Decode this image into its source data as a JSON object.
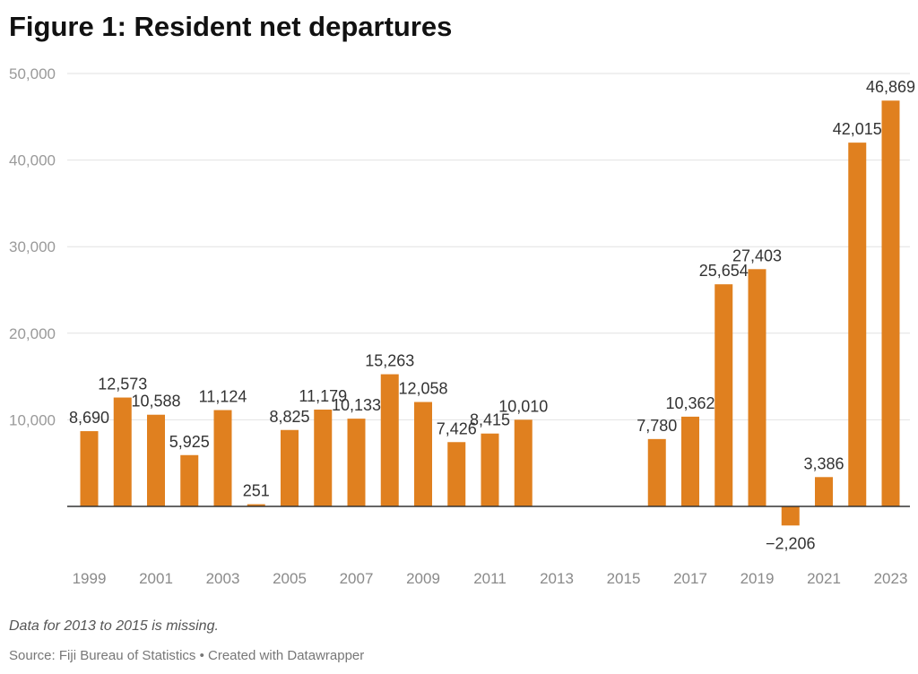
{
  "chart_data": {
    "type": "bar",
    "title": "Figure 1: Resident net departures",
    "categories": [
      "1999",
      "2000",
      "2001",
      "2002",
      "2003",
      "2004",
      "2005",
      "2006",
      "2007",
      "2008",
      "2009",
      "2010",
      "2011",
      "2012",
      "2013",
      "2014",
      "2015",
      "2016",
      "2017",
      "2018",
      "2019",
      "2020",
      "2021",
      "2022",
      "2023"
    ],
    "values": [
      8690,
      12573,
      10588,
      5925,
      11124,
      251,
      8825,
      11179,
      10133,
      15263,
      12058,
      7426,
      8415,
      10010,
      null,
      null,
      null,
      7780,
      10362,
      25654,
      27403,
      -2206,
      3386,
      42015,
      46869
    ],
    "data_labels": [
      "8,690",
      "12,573",
      "10,588",
      "5,925",
      "11,124",
      "251",
      "8,825",
      "11,179",
      "10,133",
      "15,263",
      "12,058",
      "7,426",
      "8,415",
      "10,010",
      "",
      "",
      "",
      "7,780",
      "10,362",
      "25,654",
      "27,403",
      "−2,206",
      "3,386",
      "42,015",
      "46,869"
    ],
    "x_tick_labels": [
      "1999",
      "2001",
      "2003",
      "2005",
      "2007",
      "2009",
      "2011",
      "2013",
      "2015",
      "2017",
      "2019",
      "2021",
      "2023"
    ],
    "y_ticks": [
      10000,
      20000,
      30000,
      40000,
      50000
    ],
    "y_tick_labels": [
      "10,000",
      "20,000",
      "30,000",
      "40,000",
      "50,000"
    ],
    "ylim": [
      -5000,
      50000
    ],
    "grid": true,
    "bar_color": "#e0801f",
    "xlabel": "",
    "ylabel": ""
  },
  "note": "Data for 2013 to 2015 is missing.",
  "source": "Source: Fiji Bureau of Statistics • Created with Datawrapper"
}
